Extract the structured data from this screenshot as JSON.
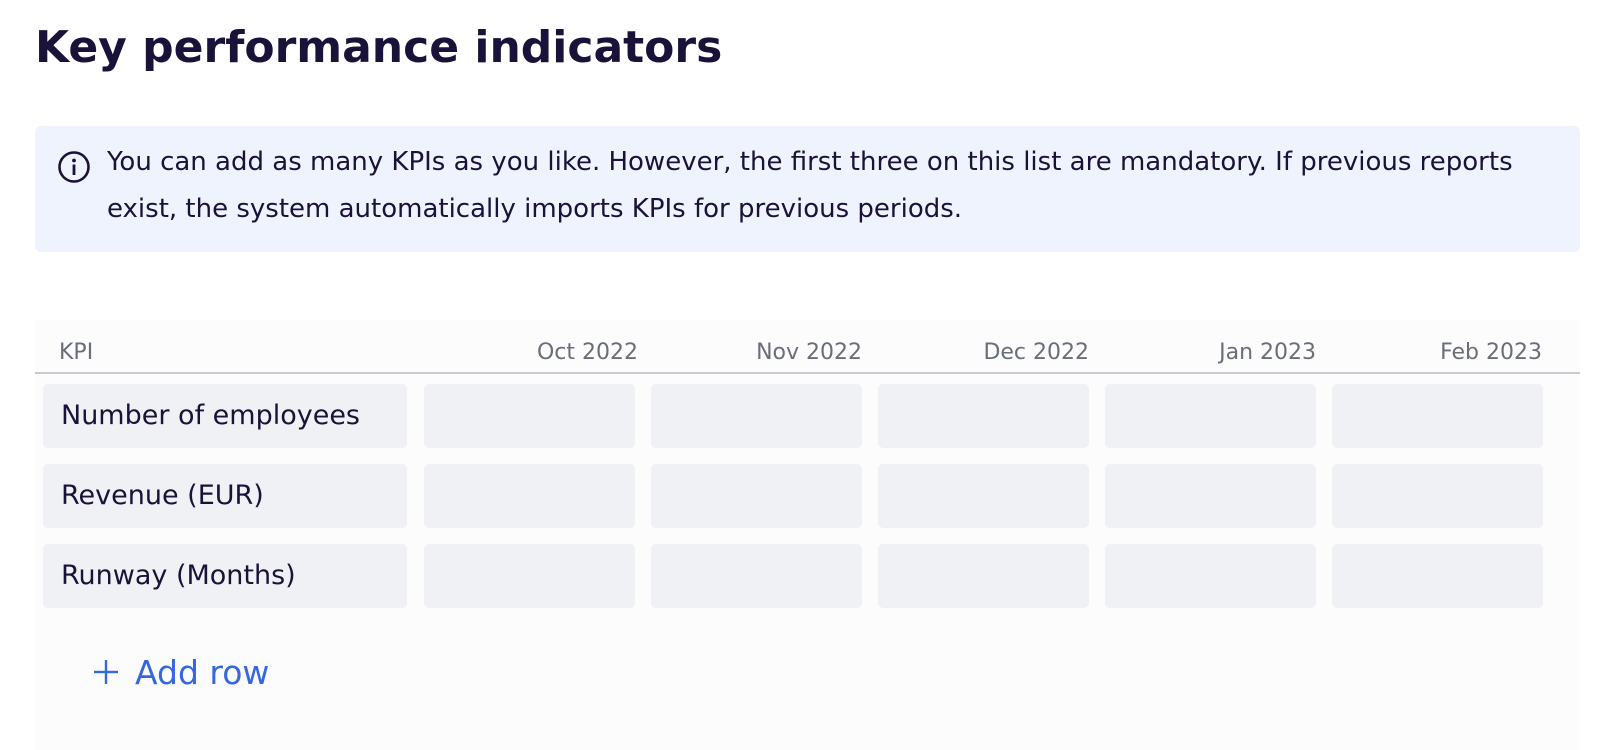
{
  "page": {
    "title": "Key performance indicators"
  },
  "info": {
    "icon": "info-circle-icon",
    "text": "You can add as many KPIs as you like. However, the first three on this list are mandatory. If previous reports exist, the system automatically imports KPIs for previous periods."
  },
  "table": {
    "kpi_header": "KPI",
    "months": [
      "Oct 2022",
      "Nov 2022",
      "Dec 2022",
      "Jan 2023",
      "Feb 2023"
    ],
    "rows": [
      {
        "kpi": "Number of employees",
        "values": [
          "",
          "",
          "",
          "",
          ""
        ]
      },
      {
        "kpi": "Revenue (EUR)",
        "values": [
          "",
          "",
          "",
          "",
          ""
        ]
      },
      {
        "kpi": "Runway (Months)",
        "values": [
          "",
          "",
          "",
          "",
          ""
        ]
      }
    ]
  },
  "actions": {
    "add_row_label": "Add row",
    "add_row_icon": "plus-icon"
  },
  "colors": {
    "title": "#1a1238",
    "info_background": "#eef3fd",
    "cell_background": "#f0f1f5",
    "header_text": "#6a6e78",
    "accent": "#3468e0"
  }
}
